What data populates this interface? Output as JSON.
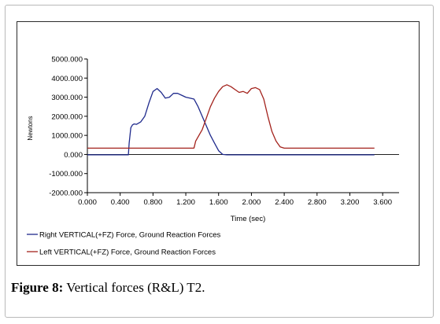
{
  "caption": {
    "label": "Figure 8:",
    "text": " Vertical forces (R&L) T2."
  },
  "chart_data": {
    "type": "line",
    "xlabel": "Time (sec)",
    "ylabel": "Newtons",
    "xlim": [
      0,
      3.8
    ],
    "ylim": [
      -2000,
      5000
    ],
    "xticks": [
      "0.000",
      "0.400",
      "0.800",
      "1.200",
      "1.600",
      "2.000",
      "2.400",
      "2.800",
      "3.200",
      "3.600"
    ],
    "yticks": [
      "5000.000",
      "4000.000",
      "3000.000",
      "2000.000",
      "1000.000",
      "0.000",
      "-1000.000",
      "-2000.000"
    ],
    "grid": false,
    "legend_position": "bottom",
    "series": [
      {
        "name": "Right VERTICAL(+FZ) Force, Ground Reaction Forces",
        "color": "#1f2a8c",
        "x": [
          0.0,
          0.5,
          0.51,
          0.53,
          0.55,
          0.57,
          0.6,
          0.65,
          0.7,
          0.75,
          0.8,
          0.85,
          0.9,
          0.95,
          1.0,
          1.05,
          1.1,
          1.15,
          1.2,
          1.25,
          1.3,
          1.35,
          1.4,
          1.45,
          1.5,
          1.55,
          1.6,
          1.65,
          1.7,
          1.75,
          2.0,
          2.4,
          2.8,
          3.2,
          3.5
        ],
        "y": [
          -20,
          -20,
          600,
          1400,
          1550,
          1600,
          1580,
          1700,
          2000,
          2700,
          3300,
          3450,
          3250,
          2950,
          3000,
          3200,
          3200,
          3100,
          3000,
          2950,
          2900,
          2500,
          2000,
          1500,
          1000,
          600,
          200,
          0,
          -20,
          -20,
          -20,
          -20,
          -20,
          -20,
          -20
        ]
      },
      {
        "name": "Left VERTICAL(+FZ) Force, Ground Reaction Forces",
        "color": "#a3221c",
        "x": [
          0.0,
          1.29,
          1.3,
          1.32,
          1.4,
          1.45,
          1.5,
          1.55,
          1.6,
          1.65,
          1.7,
          1.75,
          1.8,
          1.85,
          1.9,
          1.95,
          2.0,
          2.05,
          2.1,
          2.15,
          2.2,
          2.25,
          2.3,
          2.35,
          2.4,
          2.8,
          3.2,
          3.5
        ],
        "y": [
          330,
          330,
          340,
          700,
          1300,
          1900,
          2500,
          2950,
          3300,
          3550,
          3650,
          3550,
          3400,
          3250,
          3300,
          3200,
          3450,
          3500,
          3400,
          2900,
          2000,
          1200,
          700,
          400,
          330,
          330,
          330,
          330
        ]
      }
    ]
  }
}
